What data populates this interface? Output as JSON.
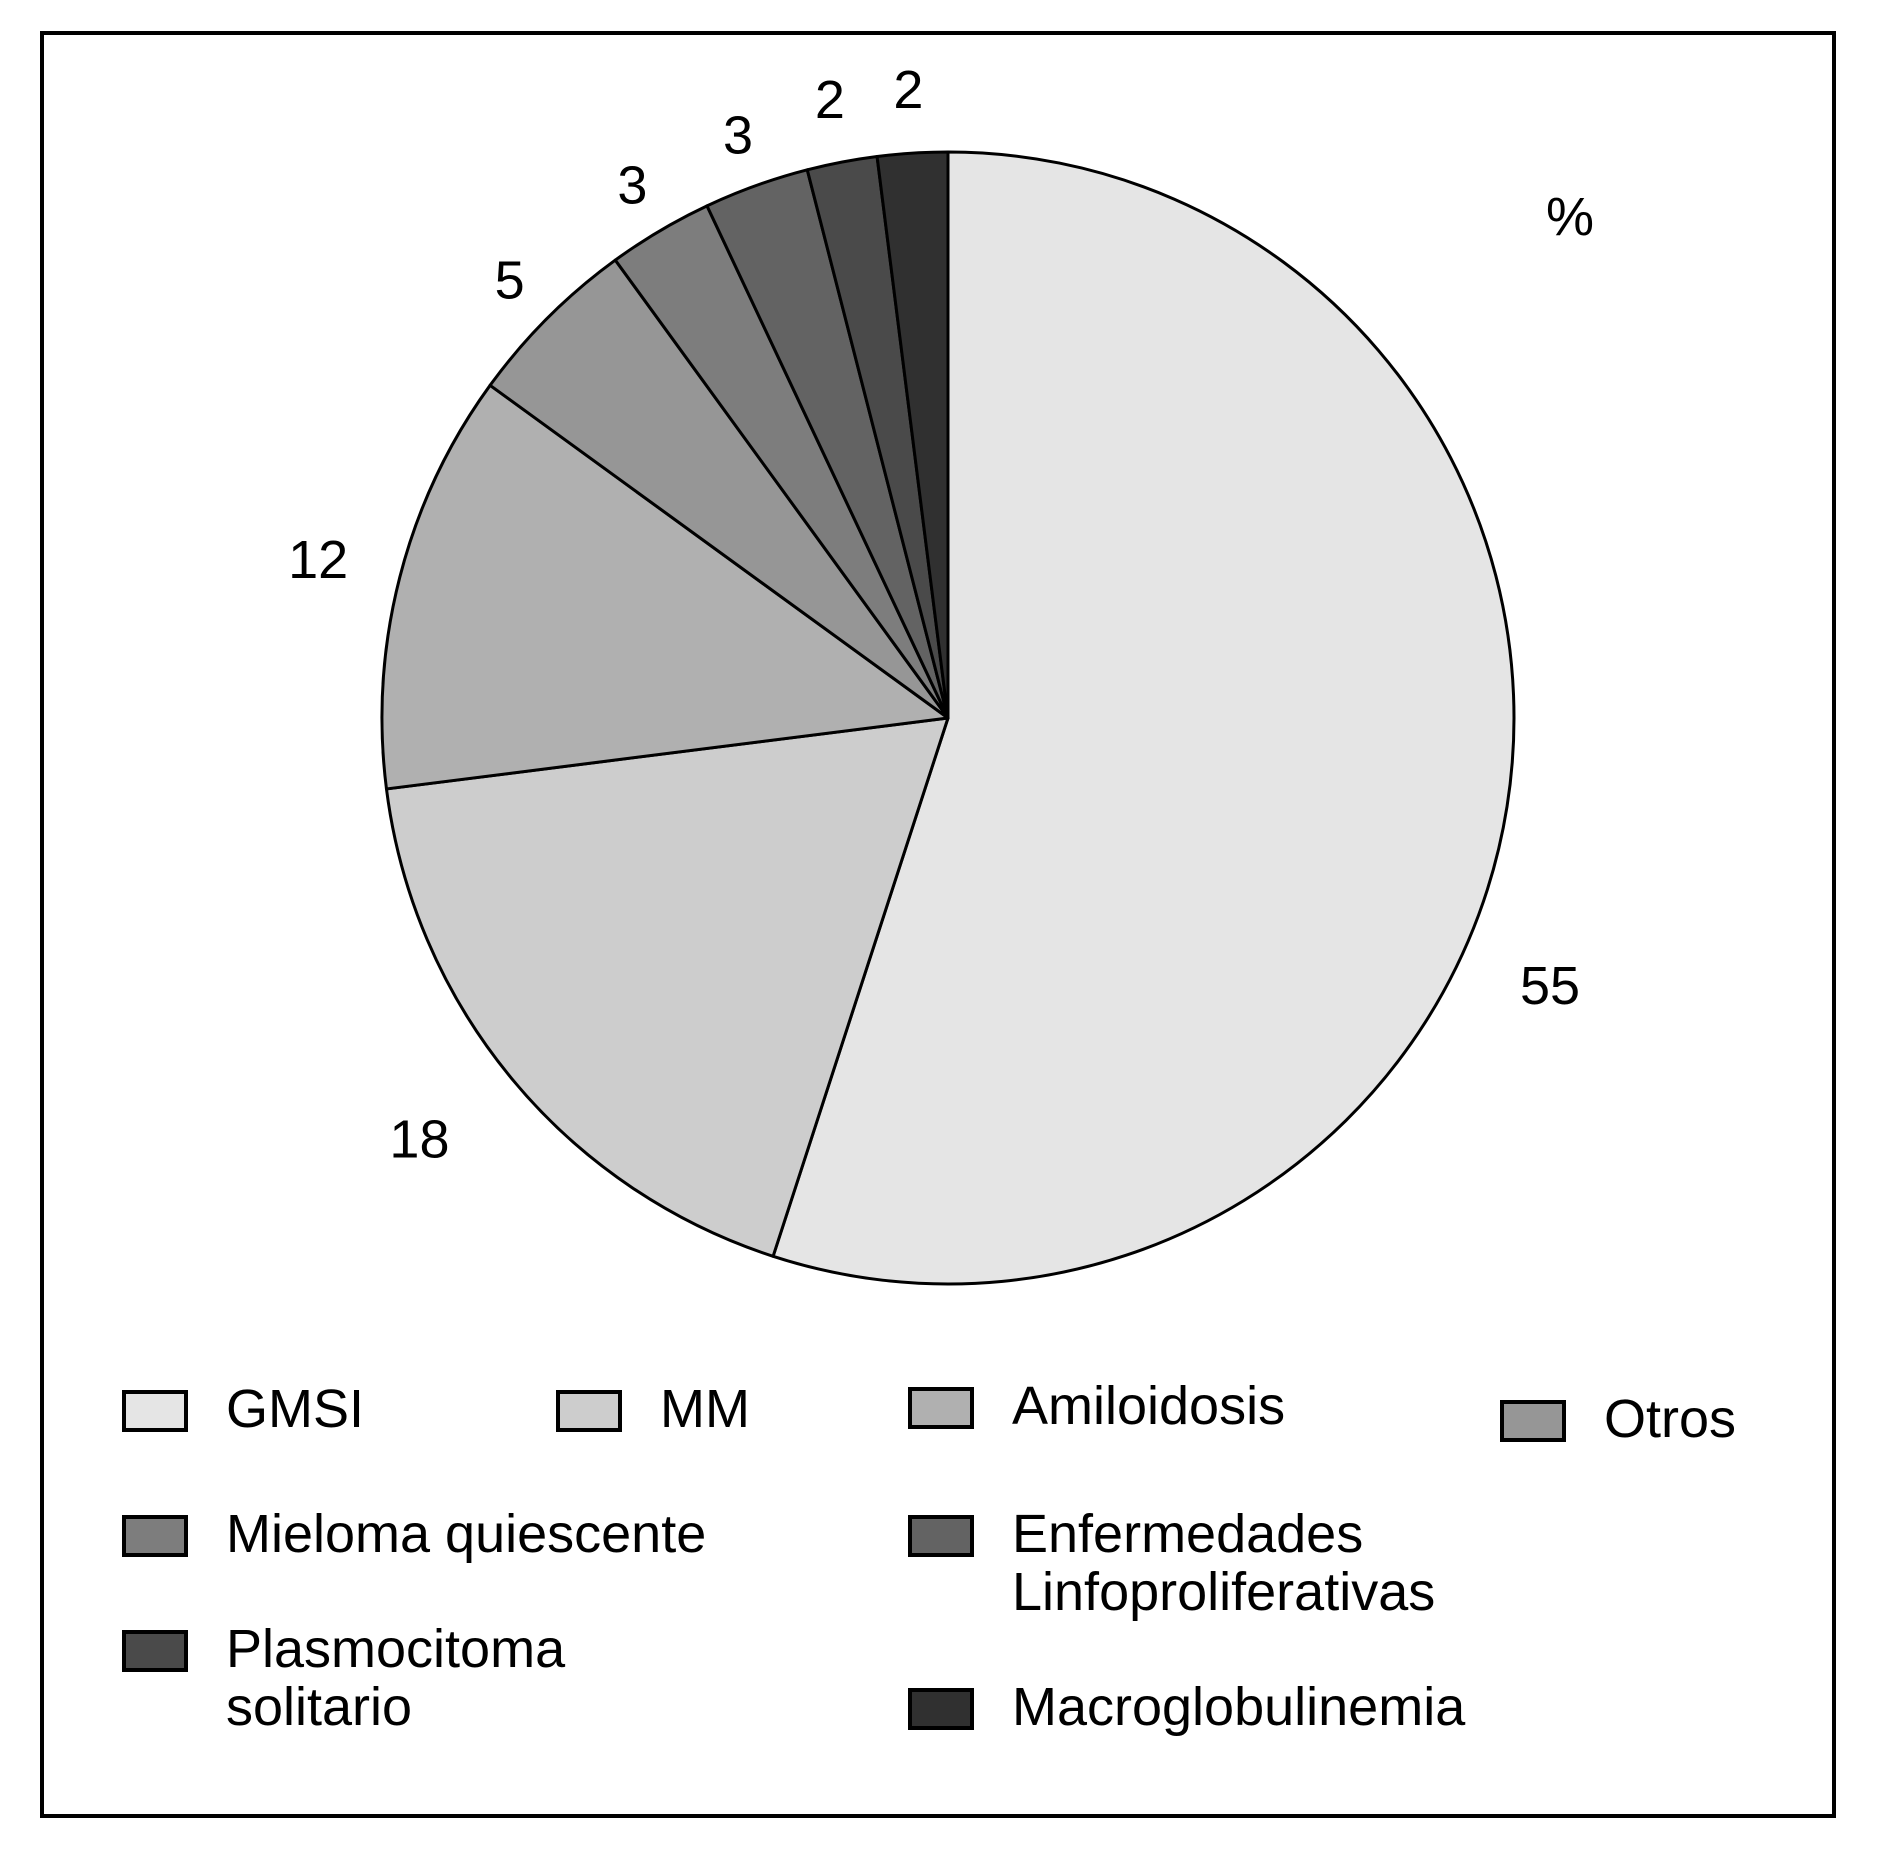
{
  "chart_data": {
    "type": "pie",
    "unit": "%",
    "start": "12 o'clock, clockwise",
    "legend_placement": "bottom",
    "categories": [
      "GMSI",
      "MM",
      "Amiloidosis",
      "Otros",
      "Mieloma quiescente",
      "Enfermedades\nLinfoproliferativas",
      "Plasmocitoma\nsolitario",
      "Macroglobulinemia"
    ],
    "values": [
      55,
      18,
      12,
      5,
      3,
      3,
      2,
      2
    ],
    "value_labels": [
      "55",
      "18",
      "12",
      "5",
      "3",
      "3",
      "2",
      "2"
    ],
    "colors": [
      "#e5e5e5",
      "#cdcdcd",
      "#b0b0b0",
      "#969696",
      "#7d7d7d",
      "#636363",
      "#4a4a4a",
      "#303030"
    ]
  }
}
